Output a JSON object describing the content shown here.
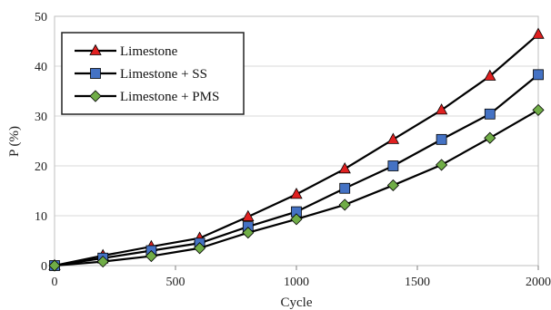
{
  "chart_data": {
    "type": "line",
    "title": "",
    "xlabel": "Cycle",
    "ylabel": "P (%)",
    "xlim": [
      0,
      2000
    ],
    "ylim": [
      0,
      50
    ],
    "xticks": [
      0,
      500,
      1000,
      1500,
      2000
    ],
    "yticks": [
      0,
      10,
      20,
      30,
      40,
      50
    ],
    "x_tick_labels": [
      "0",
      "500",
      "1000",
      "1500",
      "2000"
    ],
    "y_tick_labels": [
      "0",
      "10",
      "20",
      "30",
      "40",
      "50"
    ],
    "grid": "horizontal",
    "legend_position": "top-left",
    "x": [
      0,
      200,
      400,
      600,
      800,
      1000,
      1200,
      1400,
      1600,
      1800,
      2000
    ],
    "series": [
      {
        "name": "Limestone",
        "marker": "triangle",
        "color": "#e02020",
        "values": [
          0,
          2.0,
          3.8,
          5.5,
          9.8,
          14.3,
          19.4,
          25.3,
          31.2,
          38.0,
          46.4
        ]
      },
      {
        "name": "Limestone + SS",
        "marker": "square",
        "color": "#4472c4",
        "values": [
          0,
          1.5,
          3.0,
          4.5,
          7.8,
          10.8,
          15.5,
          20.0,
          25.3,
          30.4,
          38.3
        ]
      },
      {
        "name": "Limestone + PMS",
        "marker": "diamond",
        "color": "#70ad47",
        "values": [
          0,
          0.8,
          1.9,
          3.5,
          6.6,
          9.3,
          12.2,
          16.1,
          20.2,
          25.6,
          31.2
        ]
      }
    ]
  }
}
